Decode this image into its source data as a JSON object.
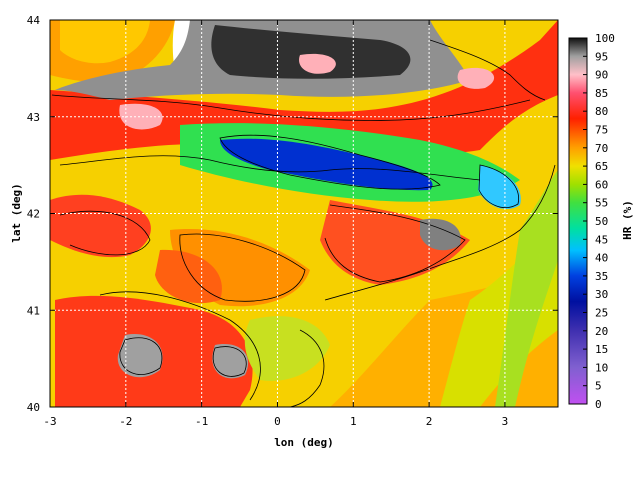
{
  "map": {
    "xlabel": "lon (deg)",
    "ylabel": "lat (deg)",
    "xlim": [
      -3,
      3.7
    ],
    "ylim": [
      40,
      44
    ],
    "x_ticks": [
      "-3",
      "-2",
      "-1",
      "0",
      "1",
      "2",
      "3"
    ],
    "y_ticks": [
      "40",
      "41",
      "42",
      "43",
      "44"
    ],
    "grid": true,
    "colorbar": {
      "label": "HR (%)",
      "ticks": [
        "0",
        "5",
        "10",
        "15",
        "20",
        "25",
        "30",
        "35",
        "40",
        "45",
        "50",
        "55",
        "60",
        "65",
        "70",
        "75",
        "80",
        "85",
        "90",
        "95",
        "100"
      ],
      "stops": [
        {
          "v": 0,
          "c": "#c050f0"
        },
        {
          "v": 10,
          "c": "#8060d0"
        },
        {
          "v": 20,
          "c": "#4030b0"
        },
        {
          "v": 28,
          "c": "#0010a0"
        },
        {
          "v": 35,
          "c": "#0040e0"
        },
        {
          "v": 42,
          "c": "#00c0ff"
        },
        {
          "v": 48,
          "c": "#00e0a0"
        },
        {
          "v": 55,
          "c": "#40e040"
        },
        {
          "v": 60,
          "c": "#a0e000"
        },
        {
          "v": 65,
          "c": "#f0e000"
        },
        {
          "v": 70,
          "c": "#ffa000"
        },
        {
          "v": 78,
          "c": "#ff2000"
        },
        {
          "v": 85,
          "c": "#ff5070"
        },
        {
          "v": 90,
          "c": "#ffc0c8"
        },
        {
          "v": 95,
          "c": "#a0a0a0"
        },
        {
          "v": 100,
          "c": "#101010"
        }
      ]
    }
  }
}
